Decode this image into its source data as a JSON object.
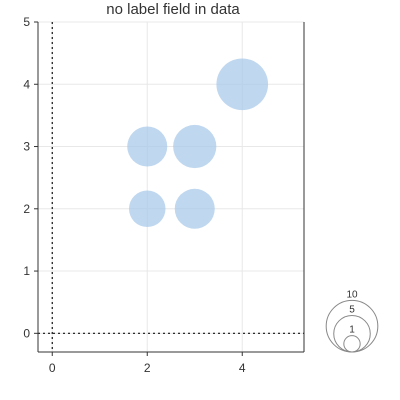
{
  "chart_data": {
    "type": "scatter",
    "title": "no label field in data",
    "xlabel": "",
    "ylabel": "",
    "xlim": [
      -0.3,
      5.3
    ],
    "ylim": [
      -0.3,
      5
    ],
    "x_ticks": [
      0,
      2,
      4
    ],
    "y_ticks": [
      0,
      1,
      2,
      3,
      4,
      5
    ],
    "x_tick_labels": [
      "0",
      "2",
      "4"
    ],
    "y_tick_labels": [
      "0",
      "1",
      "2",
      "3",
      "4",
      "5"
    ],
    "grid": true,
    "reference_lines": {
      "x": 0,
      "y": 0,
      "style": "dotted"
    },
    "points": [
      {
        "x": 2,
        "y": 2,
        "size": 5
      },
      {
        "x": 3,
        "y": 2,
        "size": 6
      },
      {
        "x": 2,
        "y": 3,
        "size": 6
      },
      {
        "x": 3,
        "y": 3,
        "size": 7
      },
      {
        "x": 4,
        "y": 4,
        "size": 10
      }
    ],
    "point_color": "#a9c9ea",
    "point_opacity": 0.75,
    "size_legend": {
      "placement": "bottom-right",
      "sizes": [
        10,
        5,
        1
      ],
      "labels": [
        "10",
        "5",
        "1"
      ]
    }
  }
}
